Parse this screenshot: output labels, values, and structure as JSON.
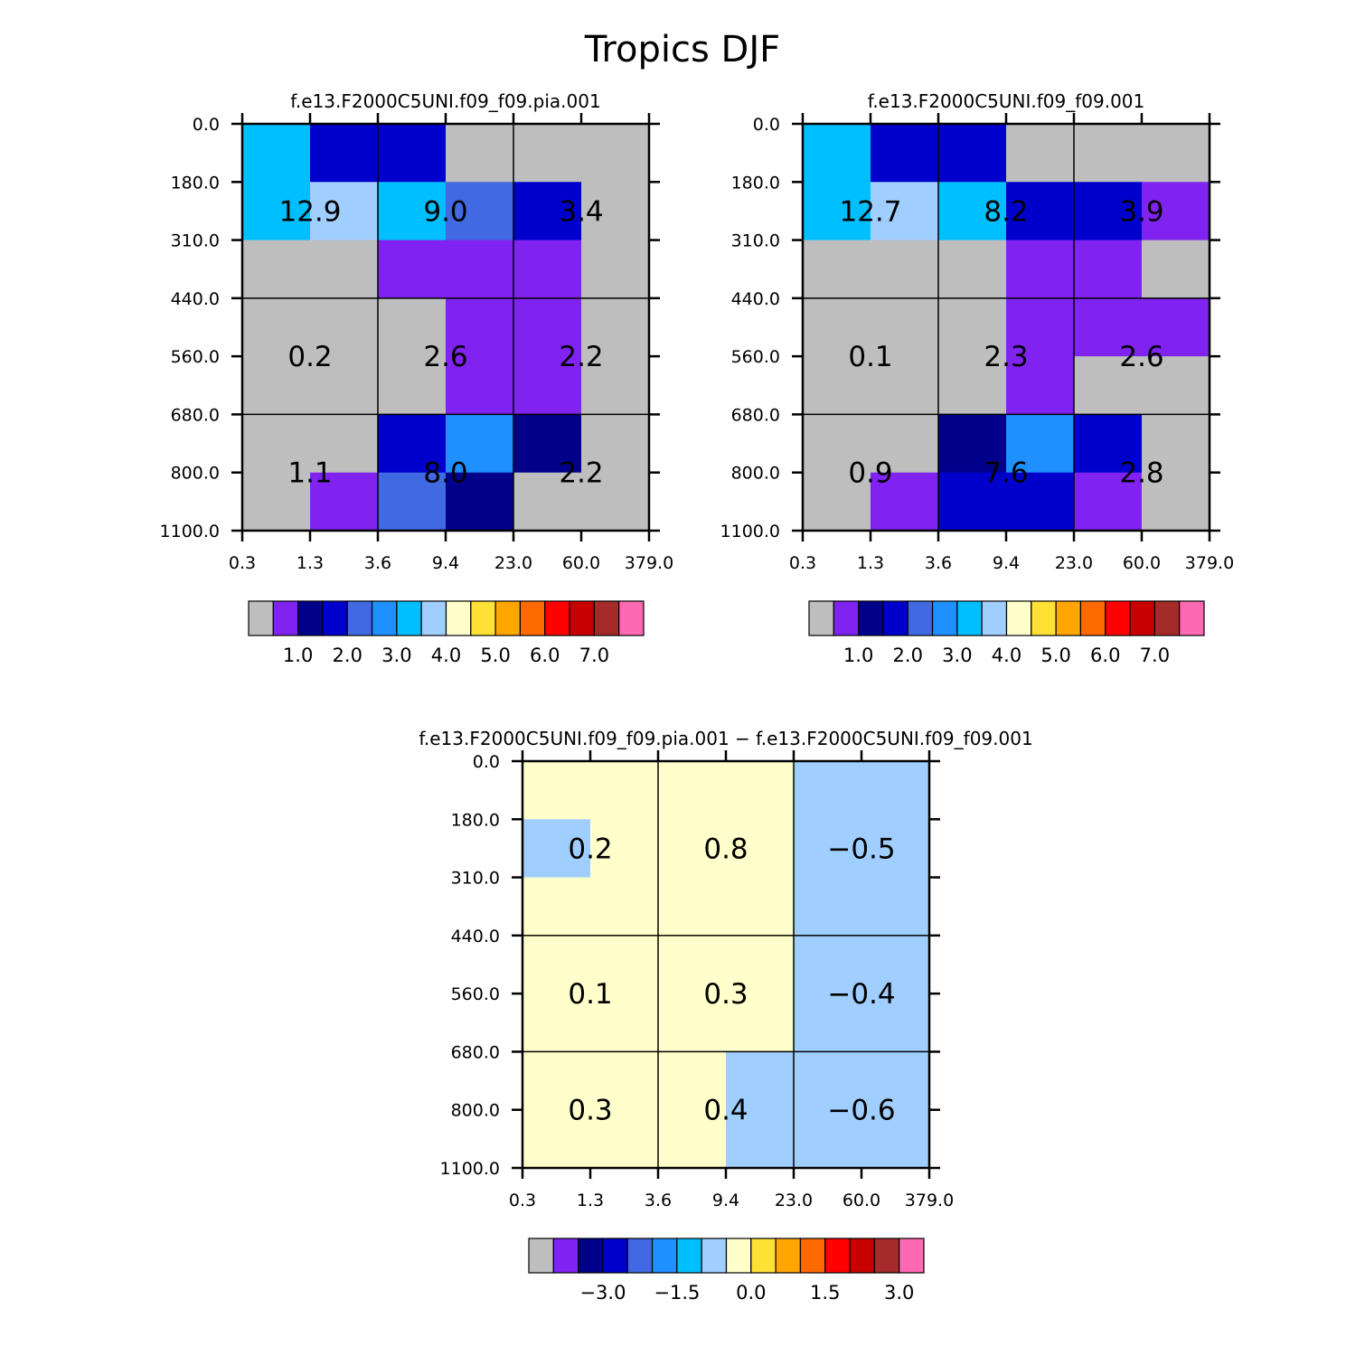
{
  "figure_title": "Tropics DJF",
  "chart_data": [
    {
      "type": "heatmap",
      "panel": "left",
      "title": "f.e13.F2000C5UNI.f09_f09.pia.001",
      "x_ticks": [
        "0.3",
        "1.3",
        "3.6",
        "9.4",
        "23.0",
        "60.0",
        "379.0"
      ],
      "y_ticks": [
        "0.0",
        "180.0",
        "310.0",
        "440.0",
        "560.0",
        "680.0",
        "800.0",
        "1100.0"
      ],
      "cell_colors": [
        [
          "#00BFFF",
          "#0000CD",
          "#0000CD",
          "#BEBEBE",
          "#BEBEBE",
          "#BEBEBE"
        ],
        [
          "#00BFFF",
          "#A0CFFF",
          "#00BFFF",
          "#4169E1",
          "#0000CD",
          "#BEBEBE"
        ],
        [
          "#BEBEBE",
          "#BEBEBE",
          "#8023F0",
          "#8023F0",
          "#8023F0",
          "#BEBEBE"
        ],
        [
          "#BEBEBE",
          "#BEBEBE",
          "#BEBEBE",
          "#8023F0",
          "#8023F0",
          "#BEBEBE"
        ],
        [
          "#BEBEBE",
          "#BEBEBE",
          "#BEBEBE",
          "#8023F0",
          "#8023F0",
          "#BEBEBE"
        ],
        [
          "#BEBEBE",
          "#BEBEBE",
          "#0000CD",
          "#1E90FF",
          "#00008B",
          "#BEBEBE"
        ],
        [
          "#BEBEBE",
          "#8023F0",
          "#4169E1",
          "#00008B",
          "#BEBEBE",
          "#BEBEBE"
        ]
      ],
      "box_values": [
        [
          "12.9",
          "9.0",
          "3.4"
        ],
        [
          "0.2",
          "2.6",
          "2.2"
        ],
        [
          "1.1",
          "8.0",
          "2.2"
        ]
      ],
      "colorbar": {
        "colors": [
          "#BEBEBE",
          "#8023F0",
          "#00008B",
          "#0000CD",
          "#4169E1",
          "#1E90FF",
          "#00BFFF",
          "#A0CFFF",
          "#FFFFCC",
          "#FFE135",
          "#FFA500",
          "#FF6A00",
          "#FF0000",
          "#C80000",
          "#A52A2A",
          "#FF69B4"
        ],
        "labels": [
          "1.0",
          "2.0",
          "3.0",
          "4.0",
          "5.0",
          "6.0",
          "7.0"
        ]
      }
    },
    {
      "type": "heatmap",
      "panel": "right",
      "title": "f.e13.F2000C5UNI.f09_f09.001",
      "x_ticks": [
        "0.3",
        "1.3",
        "3.6",
        "9.4",
        "23.0",
        "60.0",
        "379.0"
      ],
      "y_ticks": [
        "0.0",
        "180.0",
        "310.0",
        "440.0",
        "560.0",
        "680.0",
        "800.0",
        "1100.0"
      ],
      "cell_colors": [
        [
          "#00BFFF",
          "#0000CD",
          "#0000CD",
          "#BEBEBE",
          "#BEBEBE",
          "#BEBEBE"
        ],
        [
          "#00BFFF",
          "#A0CFFF",
          "#00BFFF",
          "#0000CD",
          "#0000CD",
          "#8023F0"
        ],
        [
          "#BEBEBE",
          "#BEBEBE",
          "#BEBEBE",
          "#8023F0",
          "#8023F0",
          "#BEBEBE"
        ],
        [
          "#BEBEBE",
          "#BEBEBE",
          "#BEBEBE",
          "#8023F0",
          "#8023F0",
          "#8023F0"
        ],
        [
          "#BEBEBE",
          "#BEBEBE",
          "#BEBEBE",
          "#8023F0",
          "#BEBEBE",
          "#BEBEBE"
        ],
        [
          "#BEBEBE",
          "#BEBEBE",
          "#00008B",
          "#1E90FF",
          "#0000CD",
          "#BEBEBE"
        ],
        [
          "#BEBEBE",
          "#8023F0",
          "#0000CD",
          "#0000CD",
          "#8023F0",
          "#BEBEBE"
        ]
      ],
      "box_values": [
        [
          "12.7",
          "8.2",
          "3.9"
        ],
        [
          "0.1",
          "2.3",
          "2.6"
        ],
        [
          "0.9",
          "7.6",
          "2.8"
        ]
      ],
      "colorbar": {
        "colors": [
          "#BEBEBE",
          "#8023F0",
          "#00008B",
          "#0000CD",
          "#4169E1",
          "#1E90FF",
          "#00BFFF",
          "#A0CFFF",
          "#FFFFCC",
          "#FFE135",
          "#FFA500",
          "#FF6A00",
          "#FF0000",
          "#C80000",
          "#A52A2A",
          "#FF69B4"
        ],
        "labels": [
          "1.0",
          "2.0",
          "3.0",
          "4.0",
          "5.0",
          "6.0",
          "7.0"
        ]
      }
    },
    {
      "type": "heatmap",
      "panel": "bottom",
      "title": "f.e13.F2000C5UNI.f09_f09.pia.001 − f.e13.F2000C5UNI.f09_f09.001",
      "x_ticks": [
        "0.3",
        "1.3",
        "3.6",
        "9.4",
        "23.0",
        "60.0",
        "379.0"
      ],
      "y_ticks": [
        "0.0",
        "180.0",
        "310.0",
        "440.0",
        "560.0",
        "680.0",
        "800.0",
        "1100.0"
      ],
      "cell_colors": [
        [
          "#FFFFCC",
          "#FFFFCC",
          "#FFFFCC",
          "#FFFFCC",
          "#A0CFFF",
          "#A0CFFF"
        ],
        [
          "#A0CFFF",
          "#FFFFCC",
          "#FFFFCC",
          "#FFFFCC",
          "#A0CFFF",
          "#A0CFFF"
        ],
        [
          "#FFFFCC",
          "#FFFFCC",
          "#FFFFCC",
          "#FFFFCC",
          "#A0CFFF",
          "#A0CFFF"
        ],
        [
          "#FFFFCC",
          "#FFFFCC",
          "#FFFFCC",
          "#FFFFCC",
          "#A0CFFF",
          "#A0CFFF"
        ],
        [
          "#FFFFCC",
          "#FFFFCC",
          "#FFFFCC",
          "#FFFFCC",
          "#A0CFFF",
          "#A0CFFF"
        ],
        [
          "#FFFFCC",
          "#FFFFCC",
          "#FFFFCC",
          "#A0CFFF",
          "#A0CFFF",
          "#A0CFFF"
        ],
        [
          "#FFFFCC",
          "#FFFFCC",
          "#FFFFCC",
          "#A0CFFF",
          "#A0CFFF",
          "#A0CFFF"
        ]
      ],
      "box_values": [
        [
          "0.2",
          "0.8",
          "−0.5"
        ],
        [
          "0.1",
          "0.3",
          "−0.4"
        ],
        [
          "0.3",
          "0.4",
          "−0.6"
        ]
      ],
      "colorbar": {
        "colors": [
          "#BEBEBE",
          "#8023F0",
          "#00008B",
          "#0000CD",
          "#4169E1",
          "#1E90FF",
          "#00BFFF",
          "#A0CFFF",
          "#FFFFCC",
          "#FFE135",
          "#FFA500",
          "#FF6A00",
          "#FF0000",
          "#C80000",
          "#A52A2A",
          "#FF69B4"
        ],
        "labels": [
          "−3.0",
          "−1.5",
          "0.0",
          "1.5",
          "3.0"
        ]
      }
    }
  ]
}
